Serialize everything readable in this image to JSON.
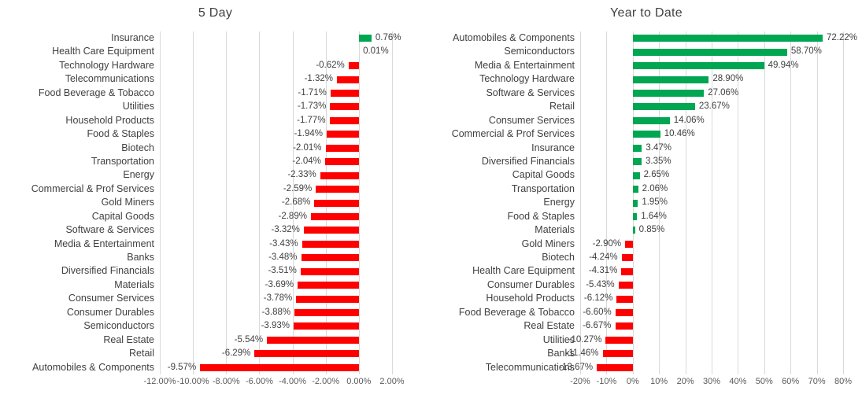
{
  "colors": {
    "positive_bar": "#00A651",
    "negative_bar": "#FF0000",
    "gridline": "#D9D9D9",
    "label_text": "#404040",
    "axis_text": "#595959"
  },
  "chart_data": [
    {
      "type": "bar",
      "orientation": "horizontal",
      "title": "5 Day",
      "grid": true,
      "legend": "none",
      "xlim": [
        -12,
        2
      ],
      "ticks": [
        -12,
        -10,
        -8,
        -6,
        -4,
        -2,
        0,
        2
      ],
      "tick_labels": [
        "-12.00%",
        "-10.00%",
        "-8.00%",
        "-6.00%",
        "-4.00%",
        "-2.00%",
        "0.00%",
        "2.00%"
      ],
      "categories": [
        "Insurance",
        "Health Care Equipment",
        "Technology Hardware",
        "Telecommunications",
        "Food Beverage & Tobacco",
        "Utilities",
        "Household Products",
        "Food & Staples",
        "Biotech",
        "Transportation",
        "Energy",
        "Commercial & Prof Services",
        "Gold Miners",
        "Capital Goods",
        "Software & Services",
        "Media & Entertainment",
        "Banks",
        "Diversified Financials",
        "Materials",
        "Consumer Services",
        "Consumer Durables",
        "Semiconductors",
        "Real Estate",
        "Retail",
        "Automobiles & Components"
      ],
      "values": [
        0.76,
        0.01,
        -0.62,
        -1.32,
        -1.71,
        -1.73,
        -1.77,
        -1.94,
        -2.01,
        -2.04,
        -2.33,
        -2.59,
        -2.68,
        -2.89,
        -3.32,
        -3.43,
        -3.48,
        -3.51,
        -3.69,
        -3.78,
        -3.88,
        -3.93,
        -5.54,
        -6.29,
        -9.57
      ],
      "value_labels": [
        "0.76%",
        "0.01%",
        "-0.62%",
        "-1.32%",
        "-1.71%",
        "-1.73%",
        "-1.77%",
        "-1.94%",
        "-2.01%",
        "-2.04%",
        "-2.33%",
        "-2.59%",
        "-2.68%",
        "-2.89%",
        "-3.32%",
        "-3.43%",
        "-3.48%",
        "-3.51%",
        "-3.69%",
        "-3.78%",
        "-3.88%",
        "-3.93%",
        "-5.54%",
        "-6.29%",
        "-9.57%"
      ]
    },
    {
      "type": "bar",
      "orientation": "horizontal",
      "title": "Year to Date",
      "grid": true,
      "legend": "none",
      "xlim": [
        -20,
        80
      ],
      "ticks": [
        -20,
        -10,
        0,
        10,
        20,
        30,
        40,
        50,
        60,
        70,
        80
      ],
      "tick_labels": [
        "-20%",
        "-10%",
        "0%",
        "10%",
        "20%",
        "30%",
        "40%",
        "50%",
        "60%",
        "70%",
        "80%"
      ],
      "categories": [
        "Automobiles & Components",
        "Semiconductors",
        "Media & Entertainment",
        "Technology Hardware",
        "Software & Services",
        "Retail",
        "Consumer Services",
        "Commercial & Prof Services",
        "Insurance",
        "Diversified Financials",
        "Capital Goods",
        "Transportation",
        "Energy",
        "Food & Staples",
        "Materials",
        "Gold Miners",
        "Biotech",
        "Health Care Equipment",
        "Consumer Durables",
        "Household Products",
        "Food Beverage & Tobacco",
        "Real Estate",
        "Utilities",
        "Banks",
        "Telecommunications"
      ],
      "values": [
        72.22,
        58.7,
        49.94,
        28.9,
        27.06,
        23.67,
        14.06,
        10.46,
        3.47,
        3.35,
        2.65,
        2.06,
        1.95,
        1.64,
        0.85,
        -2.9,
        -4.24,
        -4.31,
        -5.43,
        -6.12,
        -6.6,
        -6.67,
        -10.27,
        -11.46,
        -13.67
      ],
      "value_labels": [
        "72.22%",
        "58.70%",
        "49.94%",
        "28.90%",
        "27.06%",
        "23.67%",
        "14.06%",
        "10.46%",
        "3.47%",
        "3.35%",
        "2.65%",
        "2.06%",
        "1.95%",
        "1.64%",
        "0.85%",
        "-2.90%",
        "-4.24%",
        "-4.31%",
        "-5.43%",
        "-6.12%",
        "-6.60%",
        "-6.67%",
        "-10.27%",
        "-11.46%",
        "-13.67%"
      ]
    }
  ]
}
